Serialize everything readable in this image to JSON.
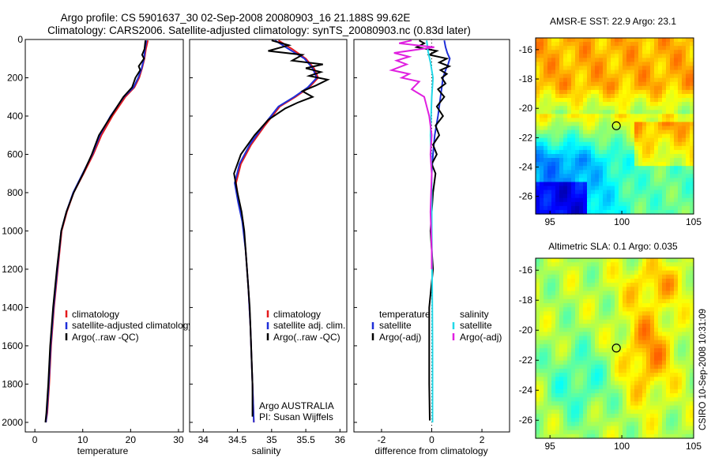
{
  "figure": {
    "title_line1": "Argo profile: CS 5901637_30 02-Sep-2008 20080903_16 21.188S 99.62E",
    "title_line2": "Climatology: CARS2006. Satellite-adjusted climatology: synTS_20080903.nc (0.83d later)",
    "side_stamp": "CSIRO 10-Sep-2008 10:31:09",
    "credit_line1": "Argo AUSTRALIA",
    "credit_line2": "PI: Susan Wijffels"
  },
  "colors": {
    "climatology": "#e41a1c",
    "satellite": "#1f2fd8",
    "argo": "#000000",
    "salinity_satellite": "#22d8e8",
    "salinity_argo": "#e020e0",
    "float_marker": "#000000"
  },
  "chart_data": [
    {
      "type": "line",
      "xlabel": "temperature",
      "ylabel": "",
      "xlim": [
        -2,
        31
      ],
      "ylim": [
        2050,
        0
      ],
      "xticks": [
        0,
        10,
        20,
        30
      ],
      "yticks": [
        0,
        200,
        400,
        600,
        800,
        1000,
        1200,
        1400,
        1600,
        1800,
        2000
      ],
      "y_reversed": true,
      "legend": [
        "climatology",
        "satellite-adjusted climatology",
        "Argo(..raw -QC)"
      ],
      "legend_position": "lower-right",
      "series": [
        {
          "name": "climatology",
          "color_key": "climatology",
          "x": [
            23.6,
            23.2,
            22.9,
            22.4,
            21.8,
            20.8,
            18.9,
            16.2,
            13.9,
            12.2,
            10.2,
            8.1,
            6.7,
            5.6,
            4.8,
            4.0,
            3.4,
            3.0,
            2.6,
            2.3
          ],
          "y": [
            5,
            50,
            100,
            150,
            200,
            250,
            300,
            400,
            500,
            600,
            700,
            800,
            900,
            1000,
            1200,
            1400,
            1600,
            1800,
            1950,
            2000
          ]
        },
        {
          "name": "satellite-adjusted climatology",
          "color_key": "satellite",
          "x": [
            23.3,
            23.0,
            22.8,
            22.3,
            21.6,
            20.6,
            18.6,
            15.8,
            13.6,
            12.0,
            10.0,
            8.0,
            6.6,
            5.5,
            4.7,
            3.9,
            3.3,
            2.9,
            2.5,
            2.3
          ],
          "y": [
            5,
            50,
            100,
            150,
            200,
            250,
            300,
            400,
            500,
            600,
            700,
            800,
            900,
            1000,
            1200,
            1400,
            1600,
            1800,
            1950,
            2000
          ]
        },
        {
          "name": "Argo(..raw -QC)",
          "color_key": "argo",
          "x": [
            23.1,
            22.9,
            22.4,
            22.8,
            21.7,
            22.0,
            21.0,
            20.3,
            18.5,
            15.9,
            13.4,
            11.9,
            10.1,
            8.1,
            6.6,
            5.5,
            4.6,
            3.8,
            3.2,
            2.8,
            2.4,
            2.2
          ],
          "y": [
            5,
            50,
            80,
            100,
            140,
            160,
            200,
            250,
            300,
            400,
            500,
            600,
            700,
            800,
            900,
            1000,
            1200,
            1400,
            1600,
            1800,
            1950,
            2000
          ]
        }
      ]
    },
    {
      "type": "line",
      "xlabel": "salinity",
      "ylabel": "",
      "xlim": [
        33.8,
        36.1
      ],
      "ylim": [
        2050,
        0
      ],
      "xticks": [
        34,
        34.5,
        35,
        35.5,
        36
      ],
      "yticks": [
        0,
        200,
        400,
        600,
        800,
        1000,
        1200,
        1400,
        1600,
        1800,
        2000
      ],
      "y_reversed": true,
      "legend": [
        "climatology",
        "satellite adj. clim.",
        "Argo(..raw -QC)"
      ],
      "legend_position": "lower-right",
      "series": [
        {
          "name": "climatology",
          "color_key": "climatology",
          "x": [
            35.1,
            35.3,
            35.5,
            35.62,
            35.68,
            35.55,
            35.35,
            35.12,
            34.9,
            34.7,
            34.55,
            34.48,
            34.52,
            34.58,
            34.62,
            34.66,
            34.69,
            34.71,
            34.73,
            34.74
          ],
          "y": [
            5,
            50,
            100,
            150,
            200,
            250,
            300,
            350,
            450,
            550,
            650,
            750,
            850,
            950,
            1100,
            1300,
            1500,
            1700,
            1900,
            2000
          ]
        },
        {
          "name": "satellite adj. clim.",
          "color_key": "satellite",
          "x": [
            35.05,
            35.25,
            35.48,
            35.6,
            35.66,
            35.53,
            35.33,
            35.1,
            34.88,
            34.68,
            34.53,
            34.46,
            34.51,
            34.57,
            34.62,
            34.66,
            34.69,
            34.71,
            34.73,
            34.74
          ],
          "y": [
            5,
            50,
            100,
            150,
            200,
            250,
            300,
            350,
            450,
            550,
            650,
            750,
            850,
            950,
            1100,
            1300,
            1500,
            1700,
            1900,
            2000
          ]
        },
        {
          "name": "Argo(..raw -QC)",
          "color_key": "argo",
          "x": [
            35.0,
            35.25,
            34.95,
            35.45,
            35.3,
            35.75,
            35.5,
            35.72,
            35.55,
            35.82,
            35.65,
            35.45,
            35.6,
            35.38,
            35.2,
            34.95,
            34.75,
            34.55,
            34.45,
            34.5,
            34.56,
            34.6,
            34.64,
            34.68,
            34.7,
            34.72,
            34.72
          ],
          "y": [
            5,
            30,
            60,
            80,
            110,
            130,
            150,
            170,
            190,
            210,
            240,
            270,
            300,
            330,
            360,
            420,
            500,
            600,
            700,
            800,
            900,
            1000,
            1200,
            1400,
            1600,
            1800,
            1970
          ]
        }
      ]
    },
    {
      "type": "line",
      "xlabel": "difference from climatology",
      "ylabel": "",
      "xlim": [
        -3.1,
        3.1
      ],
      "ylim": [
        2050,
        0
      ],
      "xticks": [
        -2,
        0,
        2
      ],
      "yticks": [
        0,
        200,
        400,
        600,
        800,
        1000,
        1200,
        1400,
        1600,
        1800,
        2000
      ],
      "y_reversed": true,
      "zero_line": true,
      "legend_headers": [
        "temperature",
        "salinity"
      ],
      "legend": [
        "satellite",
        "Argo(-adj)",
        "satellite",
        "Argo(-adj)"
      ],
      "legend_position": "lower-right",
      "series": [
        {
          "name": "satellite",
          "color_key": "satellite",
          "x": [
            0.5,
            0.55,
            0.62,
            0.72,
            0.65,
            0.55,
            0.45,
            0.35,
            0.25,
            0.12,
            0.05,
            0.0
          ],
          "y": [
            5,
            40,
            70,
            100,
            130,
            160,
            200,
            300,
            400,
            500,
            600,
            700
          ]
        },
        {
          "name": "Argo(-adj)",
          "color_key": "argo",
          "x": [
            -0.5,
            -0.3,
            -0.6,
            0.2,
            -0.1,
            0.6,
            0.3,
            0.7,
            0.35,
            0.6,
            0.4,
            0.55,
            0.25,
            0.5,
            0.2,
            0.45,
            0.15,
            0.3,
            0.05,
            0.2,
            0.0,
            0.15,
            0.05,
            -0.05,
            0.05,
            -0.1,
            -0.1,
            -0.1,
            -0.08
          ],
          "y": [
            5,
            20,
            40,
            60,
            80,
            100,
            120,
            140,
            160,
            180,
            200,
            230,
            260,
            300,
            350,
            400,
            450,
            500,
            550,
            600,
            650,
            700,
            800,
            1000,
            1200,
            1400,
            1600,
            1800,
            1990
          ]
        },
        {
          "name": "satellite",
          "color_key": "salinity_satellite",
          "x": [
            -0.2,
            -0.15,
            -0.05,
            0.05,
            0.0,
            -0.05,
            0.0,
            0.0,
            0.02,
            0.03,
            0.03,
            0.03
          ],
          "y": [
            5,
            60,
            120,
            200,
            300,
            500,
            700,
            1000,
            1300,
            1600,
            1800,
            2000
          ]
        },
        {
          "name": "Argo(-adj)",
          "color_key": "salinity_argo",
          "x": [
            -0.8,
            -1.3,
            0.1,
            -1.5,
            -0.9,
            -1.4,
            -1.0,
            -1.6,
            -0.9,
            -1.2,
            -0.5,
            -0.8,
            -0.3,
            -0.1,
            0.0,
            -0.05,
            0.0,
            -0.05,
            0.0,
            0.0
          ],
          "y": [
            5,
            20,
            40,
            70,
            90,
            110,
            130,
            160,
            180,
            200,
            220,
            260,
            300,
            400,
            500,
            600,
            700,
            900,
            1100,
            1200
          ]
        }
      ]
    },
    {
      "type": "heatmap",
      "title": "AMSR-E SST: 22.9 Argo: 23.1",
      "xlim": [
        94,
        105
      ],
      "ylim": [
        -27.2,
        -15.2
      ],
      "xticks": [
        95,
        100,
        105
      ],
      "yticks": [
        -16,
        -18,
        -20,
        -22,
        -24,
        -26
      ],
      "colormap": "jet",
      "field_pattern": "orange north, green band near 20-21S, cyan/blue south, dark navy in SW corner",
      "marker": {
        "lon": 99.62,
        "lat": -21.188
      }
    },
    {
      "type": "heatmap",
      "title": "Altimetric SLA: 0.1 Argo: 0.035",
      "xlim": [
        94,
        105
      ],
      "ylim": [
        -27.2,
        -15.2
      ],
      "xticks": [
        95,
        100,
        105
      ],
      "yticks": [
        -16,
        -18,
        -20,
        -22,
        -24,
        -26
      ],
      "colormap": "jet",
      "field_pattern": "mostly green-yellow, orange eddy east of 100E from 19S to 25S, teal patches south-west",
      "marker": {
        "lon": 99.62,
        "lat": -21.188
      }
    }
  ]
}
